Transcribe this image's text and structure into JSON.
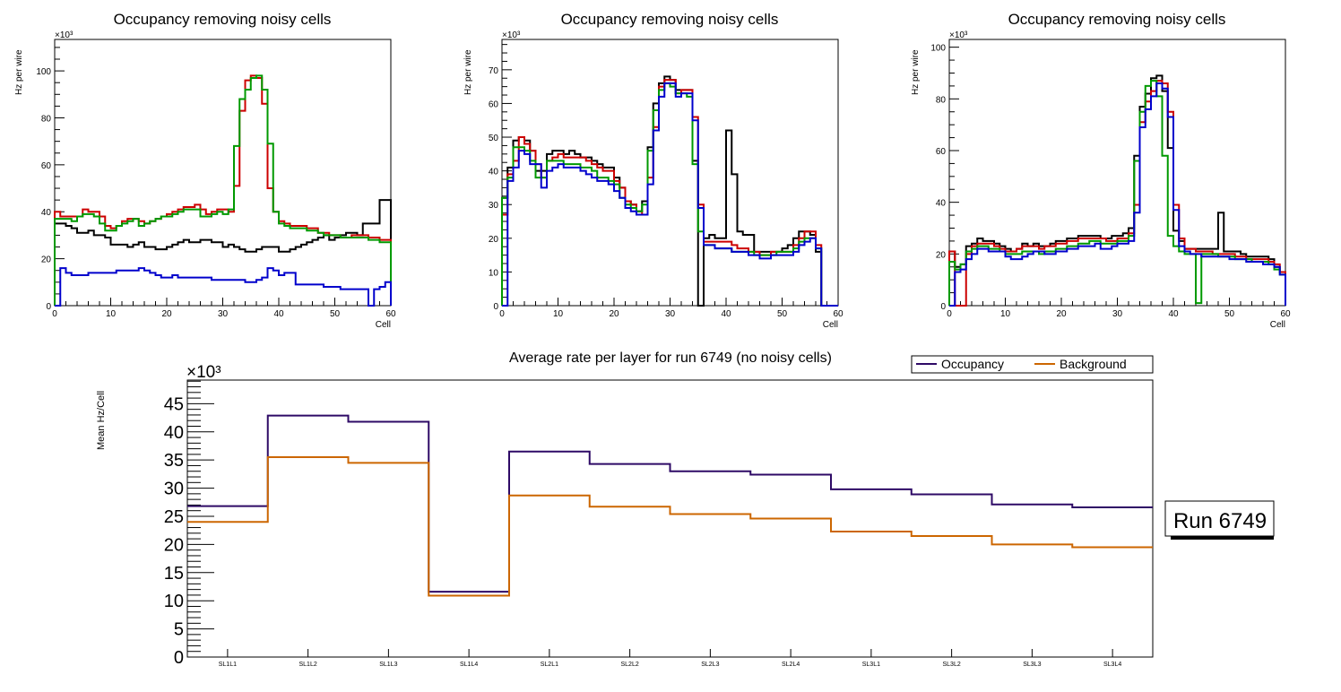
{
  "chart_data": [
    {
      "type": "step",
      "title": "Occupancy removing noisy cells",
      "xlabel": "Cell",
      "ylabel": "Hz per wire",
      "y_multiplier_label": "×10³",
      "xlim": [
        0,
        60
      ],
      "ylim": [
        0,
        113.4
      ],
      "x_ticks": [
        0,
        10,
        20,
        30,
        40,
        50,
        60
      ],
      "y_ticks": [
        0,
        20,
        40,
        60,
        80,
        100
      ],
      "series": [
        {
          "name": "black",
          "color": "#000000",
          "values": [
            35,
            35,
            34,
            33,
            31,
            31,
            32,
            30,
            30,
            29,
            26,
            26,
            26,
            25,
            26,
            27,
            25,
            25,
            24,
            24,
            25,
            26,
            27,
            28,
            27,
            27,
            28,
            28,
            27,
            27,
            25,
            26,
            25,
            24,
            23,
            23,
            24,
            25,
            25,
            25,
            23,
            23,
            24,
            25,
            26,
            27,
            28,
            29,
            30,
            28,
            29,
            30,
            31,
            31,
            30,
            35,
            35,
            35,
            45,
            45
          ]
        },
        {
          "name": "red",
          "color": "#cc0000",
          "values": [
            40,
            38,
            38,
            38,
            38,
            41,
            40,
            40,
            38,
            34,
            33,
            34,
            36,
            37,
            37,
            36,
            35,
            36,
            37,
            38,
            39,
            40,
            41,
            42,
            42,
            43,
            41,
            39,
            40,
            41,
            41,
            40,
            51,
            83,
            96,
            98,
            97,
            86,
            50,
            40,
            36,
            35,
            34,
            34,
            34,
            33,
            33,
            31,
            31,
            30,
            30,
            29,
            29,
            30,
            30,
            30,
            29,
            29,
            28,
            28
          ]
        },
        {
          "name": "green",
          "color": "#009900",
          "values": [
            37,
            37,
            37,
            36,
            38,
            39,
            39,
            38,
            35,
            32,
            32,
            34,
            35,
            36,
            37,
            34,
            35,
            36,
            37,
            38,
            38,
            39,
            40,
            41,
            41,
            41,
            38,
            38,
            39,
            40,
            39,
            41,
            68,
            88,
            92,
            97,
            98,
            92,
            69,
            40,
            35,
            34,
            33,
            33,
            33,
            32,
            32,
            31,
            30,
            30,
            30,
            29,
            29,
            29,
            29,
            29,
            28,
            28,
            27,
            27
          ]
        },
        {
          "name": "blue",
          "color": "#0000cc",
          "values": [
            0,
            16,
            14,
            13,
            13,
            13,
            14,
            14,
            14,
            14,
            14,
            15,
            15,
            15,
            15,
            16,
            15,
            14,
            13,
            12,
            12,
            13,
            12,
            12,
            12,
            12,
            12,
            12,
            11,
            11,
            11,
            11,
            11,
            11,
            10,
            10,
            11,
            12,
            16,
            15,
            13,
            14,
            14,
            9,
            9,
            9,
            9,
            9,
            8,
            8,
            8,
            7,
            7,
            7,
            7,
            7,
            0,
            7,
            8,
            10
          ]
        }
      ]
    },
    {
      "type": "step",
      "title": "Occupancy removing noisy cells",
      "xlabel": "Cell",
      "ylabel": "Hz per wire",
      "y_multiplier_label": "×10³",
      "xlim": [
        0,
        60
      ],
      "ylim": [
        0,
        79
      ],
      "x_ticks": [
        0,
        10,
        20,
        30,
        40,
        50,
        60
      ],
      "y_ticks": [
        0,
        10,
        20,
        30,
        40,
        50,
        60,
        70
      ],
      "series": [
        {
          "name": "black",
          "color": "#000000",
          "values": [
            32,
            41,
            49,
            50,
            49,
            46,
            40,
            40,
            45,
            46,
            46,
            45,
            46,
            45,
            44,
            44,
            43,
            42,
            41,
            41,
            38,
            35,
            31,
            30,
            28,
            31,
            47,
            60,
            66,
            68,
            67,
            64,
            64,
            64,
            43,
            0,
            20,
            21,
            20,
            20,
            52,
            39,
            22,
            21,
            21,
            16,
            16,
            16,
            16,
            16,
            17,
            18,
            20,
            22,
            22,
            21,
            16,
            0,
            0,
            0
          ]
        },
        {
          "name": "red",
          "color": "#cc0000",
          "values": [
            27,
            39,
            43,
            50,
            48,
            46,
            42,
            38,
            43,
            44,
            45,
            44,
            44,
            44,
            44,
            43,
            42,
            41,
            40,
            40,
            37,
            35,
            31,
            30,
            28,
            27,
            38,
            53,
            65,
            67,
            67,
            63,
            64,
            64,
            56,
            30,
            19,
            19,
            19,
            19,
            19,
            18,
            17,
            17,
            16,
            16,
            15,
            15,
            16,
            16,
            16,
            16,
            18,
            20,
            22,
            22,
            18,
            0,
            0,
            0
          ]
        },
        {
          "name": "green",
          "color": "#009900",
          "values": [
            32,
            38,
            47,
            47,
            46,
            43,
            38,
            38,
            43,
            43,
            43,
            42,
            42,
            42,
            41,
            41,
            40,
            38,
            38,
            37,
            36,
            32,
            30,
            29,
            28,
            30,
            46,
            58,
            64,
            66,
            65,
            63,
            63,
            62,
            42,
            22,
            18,
            18,
            17,
            17,
            17,
            16,
            16,
            16,
            16,
            15,
            15,
            15,
            15,
            16,
            16,
            16,
            17,
            19,
            20,
            20,
            17,
            0,
            0,
            0
          ]
        },
        {
          "name": "blue",
          "color": "#0000cc",
          "values": [
            0,
            37,
            41,
            46,
            45,
            42,
            42,
            35,
            40,
            41,
            42,
            41,
            41,
            41,
            40,
            39,
            38,
            37,
            37,
            36,
            34,
            32,
            29,
            28,
            27,
            27,
            36,
            52,
            62,
            66,
            66,
            62,
            63,
            63,
            55,
            29,
            18,
            18,
            17,
            17,
            17,
            16,
            16,
            16,
            15,
            15,
            14,
            14,
            15,
            15,
            15,
            15,
            16,
            18,
            19,
            20,
            17,
            0,
            0,
            0
          ]
        }
      ]
    },
    {
      "type": "step",
      "title": "Occupancy removing noisy cells",
      "xlabel": "Cell",
      "ylabel": "Hz per wire",
      "y_multiplier_label": "×10³",
      "xlim": [
        0,
        60
      ],
      "ylim": [
        0,
        103
      ],
      "x_ticks": [
        0,
        10,
        20,
        30,
        40,
        50,
        60
      ],
      "y_ticks": [
        0,
        20,
        40,
        60,
        80,
        100
      ],
      "series": [
        {
          "name": "black",
          "color": "#000000",
          "values": [
            21,
            15,
            16,
            23,
            24,
            26,
            25,
            25,
            24,
            23,
            22,
            21,
            22,
            24,
            23,
            24,
            23,
            23,
            24,
            25,
            25,
            26,
            26,
            27,
            27,
            27,
            27,
            26,
            26,
            27,
            27,
            28,
            30,
            58,
            77,
            82,
            88,
            89,
            83,
            61,
            29,
            25,
            22,
            22,
            22,
            22,
            22,
            22,
            36,
            21,
            21,
            21,
            20,
            19,
            19,
            19,
            19,
            18,
            15,
            13
          ]
        },
        {
          "name": "red",
          "color": "#cc0000",
          "values": [
            21,
            0,
            0,
            20,
            23,
            24,
            24,
            24,
            23,
            22,
            21,
            21,
            22,
            23,
            23,
            23,
            22,
            23,
            23,
            24,
            24,
            25,
            25,
            26,
            26,
            26,
            26,
            26,
            25,
            25,
            26,
            26,
            28,
            39,
            71,
            79,
            83,
            87,
            86,
            75,
            39,
            26,
            22,
            22,
            21,
            21,
            21,
            20,
            20,
            20,
            20,
            19,
            19,
            18,
            18,
            18,
            18,
            17,
            16,
            13
          ]
        },
        {
          "name": "green",
          "color": "#009900",
          "values": [
            17,
            14,
            16,
            21,
            22,
            23,
            23,
            22,
            22,
            21,
            20,
            20,
            20,
            21,
            21,
            21,
            20,
            21,
            21,
            22,
            22,
            23,
            23,
            24,
            24,
            25,
            25,
            24,
            24,
            24,
            25,
            25,
            27,
            56,
            75,
            85,
            87,
            81,
            58,
            27,
            23,
            21,
            20,
            20,
            1,
            20,
            20,
            20,
            19,
            19,
            19,
            18,
            18,
            18,
            17,
            17,
            17,
            16,
            14,
            12
          ]
        },
        {
          "name": "blue",
          "color": "#0000cc",
          "values": [
            0,
            13,
            14,
            18,
            20,
            22,
            22,
            21,
            21,
            21,
            19,
            18,
            18,
            19,
            20,
            21,
            21,
            20,
            20,
            21,
            21,
            22,
            22,
            23,
            23,
            23,
            24,
            22,
            22,
            23,
            24,
            24,
            25,
            36,
            69,
            76,
            81,
            86,
            84,
            73,
            37,
            23,
            21,
            20,
            20,
            19,
            19,
            19,
            19,
            19,
            18,
            18,
            18,
            17,
            17,
            17,
            16,
            16,
            15,
            12
          ]
        }
      ]
    },
    {
      "type": "step",
      "title": "Average rate per layer for run 6749 (no noisy cells)",
      "xlabel": "",
      "ylabel": "Mean Hz/Cell",
      "y_multiplier_label": "×10³",
      "ylim": [
        0,
        49.2
      ],
      "y_ticks": [
        0,
        5,
        10,
        15,
        20,
        25,
        30,
        35,
        40,
        45
      ],
      "categories": [
        "SL1L1",
        "SL1L2",
        "SL1L3",
        "SL1L4",
        "SL2L1",
        "SL2L2",
        "SL2L3",
        "SL2L4",
        "SL3L1",
        "SL3L2",
        "SL3L3",
        "SL3L4"
      ],
      "legend": {
        "placement": "top-right",
        "entries": [
          "Occupancy",
          "Background"
        ]
      },
      "series": [
        {
          "name": "Occupancy",
          "color": "#2e0a66",
          "values": [
            26.8,
            42.9,
            41.8,
            11.6,
            36.5,
            34.3,
            33.0,
            32.4,
            29.8,
            28.9,
            27.1,
            26.6
          ]
        },
        {
          "name": "Background",
          "color": "#cc6600",
          "values": [
            24.0,
            35.5,
            34.5,
            10.9,
            28.7,
            26.7,
            25.4,
            24.6,
            22.3,
            21.5,
            20.0,
            19.5
          ]
        }
      ]
    }
  ],
  "annotation": {
    "run_label": "Run 6749"
  }
}
